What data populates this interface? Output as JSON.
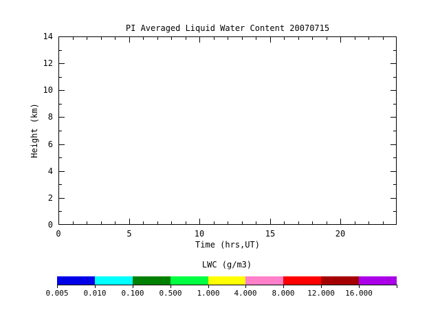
{
  "figure": {
    "background": "#FFFFFF",
    "foreground": "#000000"
  },
  "chart_data": {
    "type": "heatmap",
    "title": "PI Averaged Liquid Water Content 20070715",
    "xlabel": "Time (hrs,UT)",
    "ylabel": "Height (km)",
    "xlim": [
      0,
      24
    ],
    "ylim": [
      0,
      14
    ],
    "x_major_ticks": [
      0,
      5,
      10,
      15,
      20
    ],
    "x_minor_interval": 1,
    "y_major_ticks": [
      0,
      2,
      4,
      6,
      8,
      10,
      12,
      14
    ],
    "y_minor_interval": 1,
    "grid": false,
    "values": [],
    "plot_area_empty": true,
    "colorbar": {
      "title": "LWC (g/m3)",
      "position": "bottom",
      "tick_labels": [
        "0.005",
        "0.010",
        "0.100",
        "0.500",
        "1.000",
        "4.000",
        "8.000",
        "12.000",
        "16.000"
      ],
      "segment_colors": [
        "#0000E8",
        "#00FFFF",
        "#008000",
        "#00FF40",
        "#FFFF00",
        "#FF80C8",
        "#FF0000",
        "#A40000",
        "#AA00E8"
      ]
    }
  }
}
